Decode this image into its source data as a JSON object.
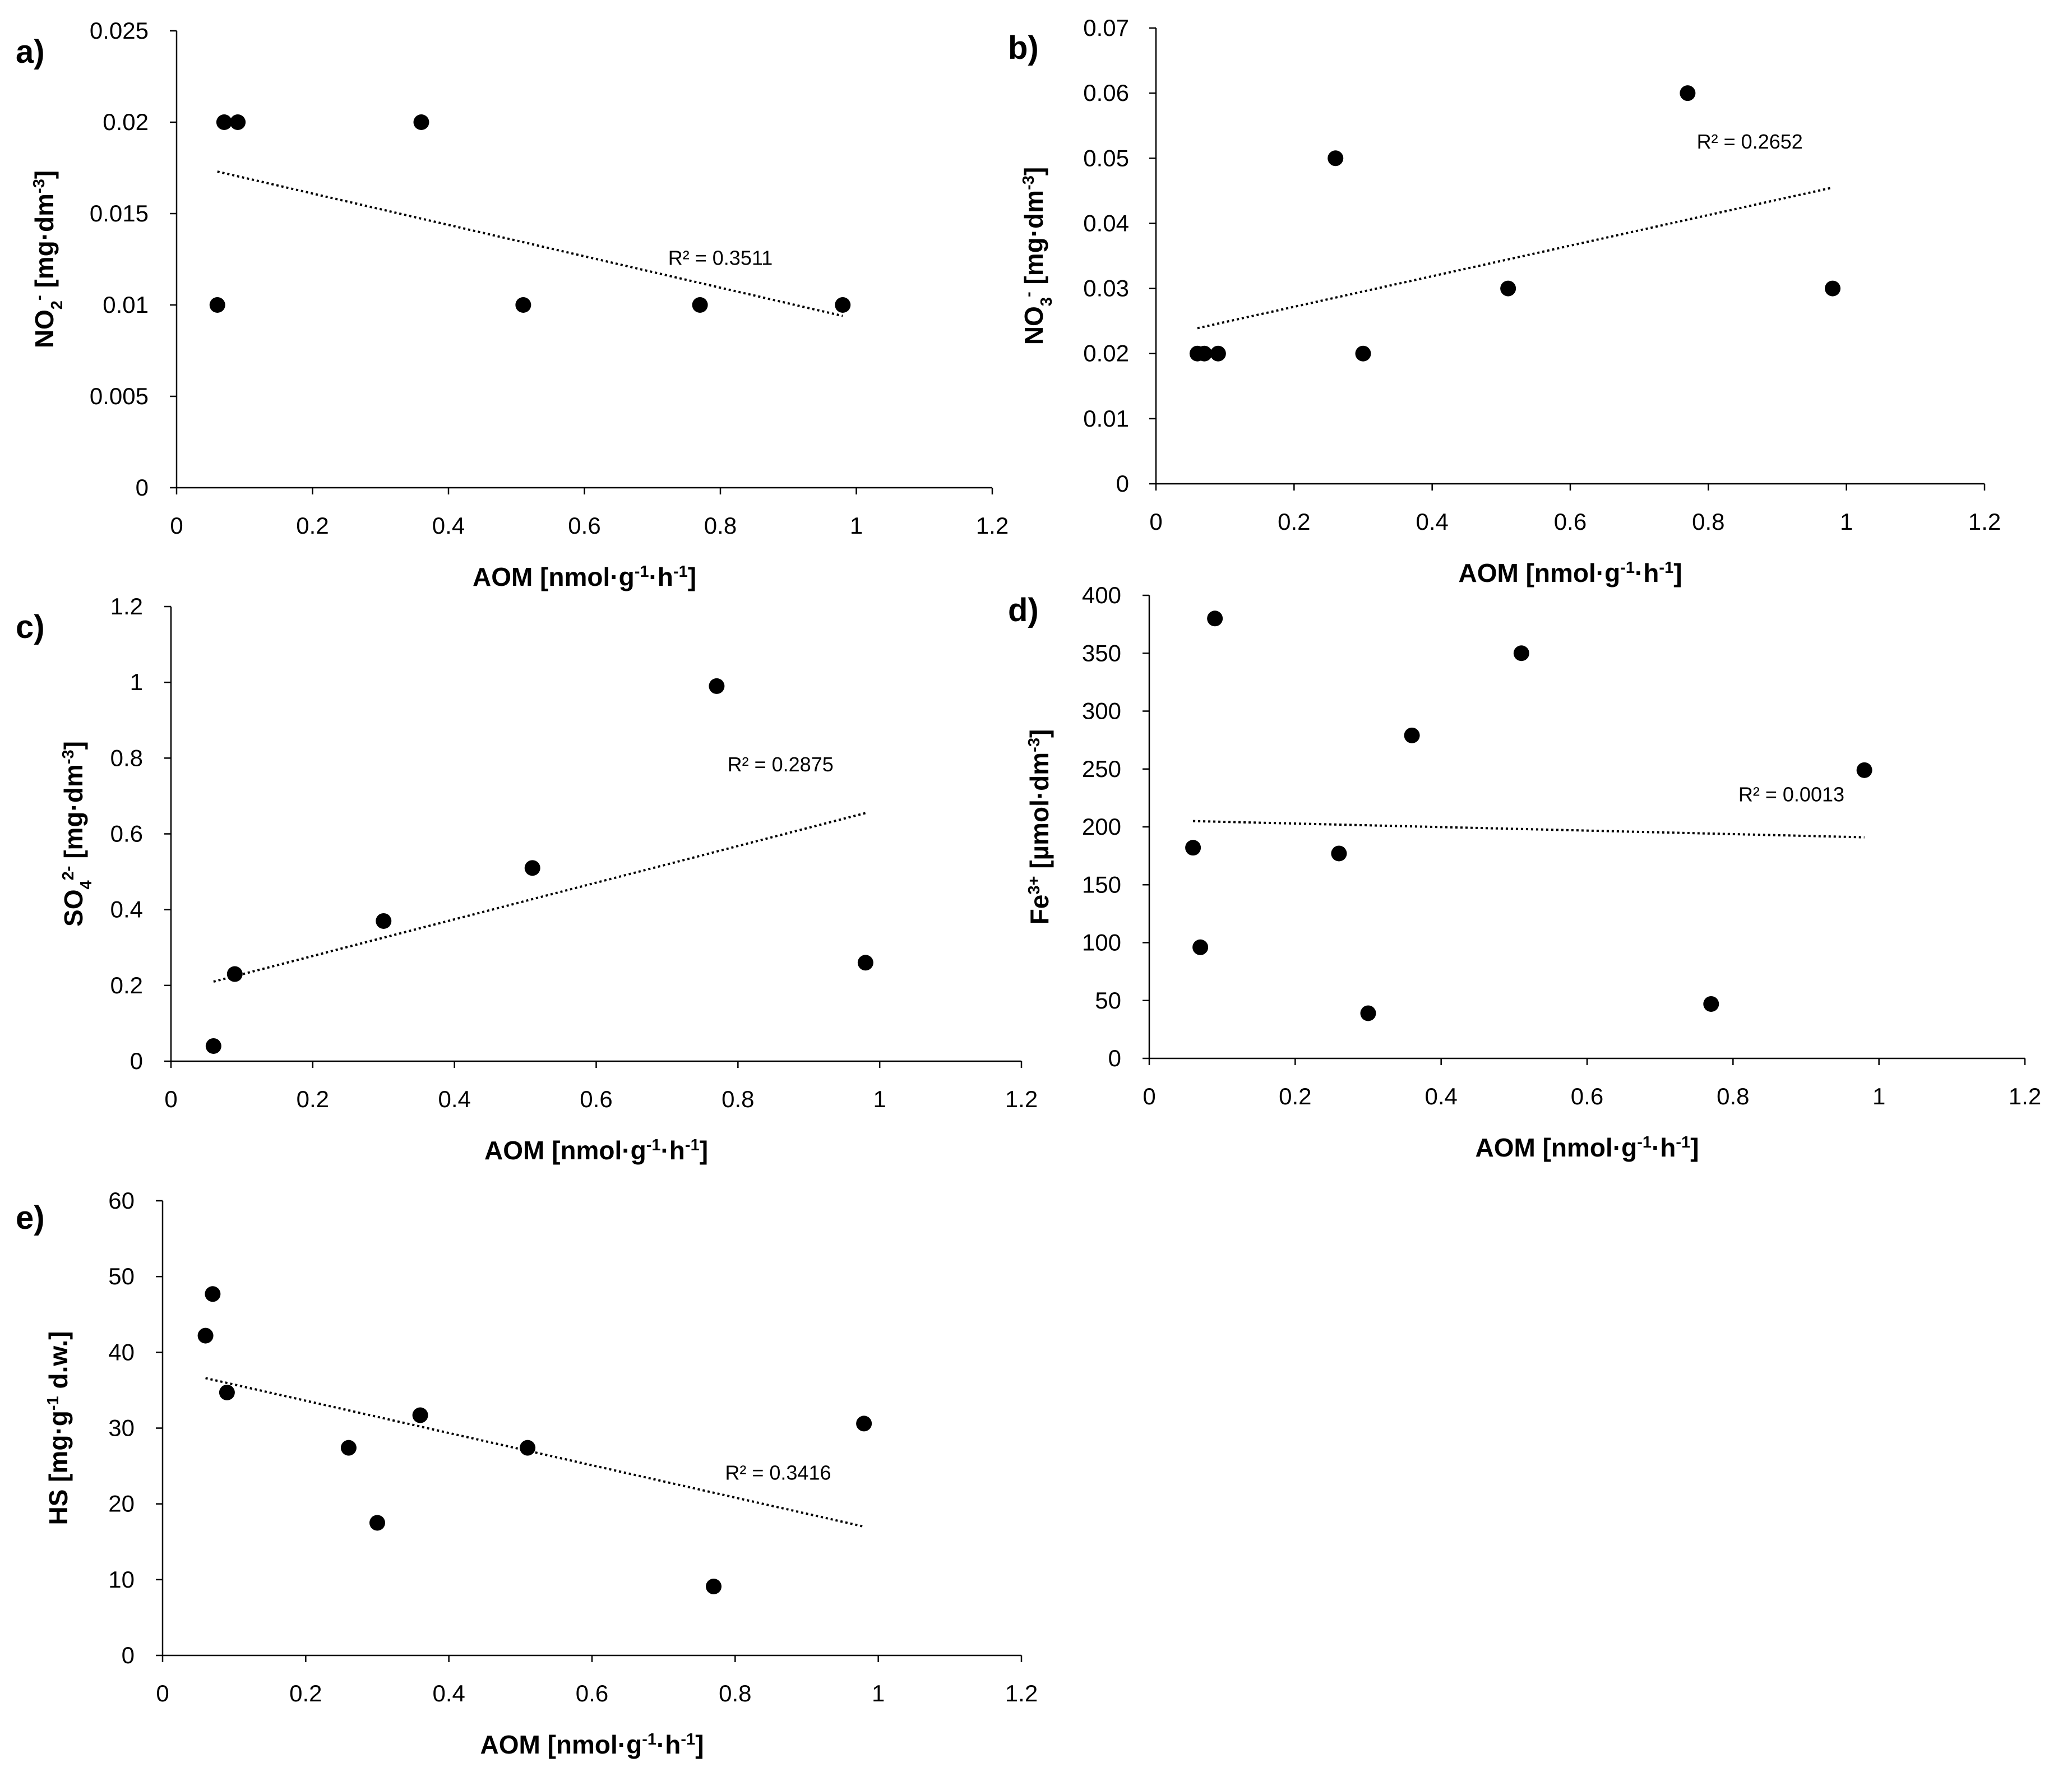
{
  "chart_data": [
    {
      "type": "scatter",
      "panel": "a)",
      "xlabel": "AOM [nmol·g⁻¹·h⁻¹]",
      "ylabel": "NO₂⁻ [mg·dm⁻³]",
      "xlim": [
        0,
        1.2
      ],
      "ylim": [
        0,
        0.025
      ],
      "xticks": [
        0,
        0.2,
        0.4,
        0.6,
        0.8,
        1,
        1.2
      ],
      "xtick_labels": [
        "0",
        "0.2",
        "0.4",
        "0.6",
        "0.8",
        "1",
        "1.2"
      ],
      "yticks": [
        0,
        0.005,
        0.01,
        0.015,
        0.02,
        0.025
      ],
      "ytick_labels": [
        "0",
        "0.005",
        "0.01",
        "0.015",
        "0.02",
        "0.025"
      ],
      "points": [
        [
          0.06,
          0.01
        ],
        [
          0.07,
          0.02
        ],
        [
          0.09,
          0.02
        ],
        [
          0.36,
          0.02
        ],
        [
          0.51,
          0.01
        ],
        [
          0.77,
          0.01
        ],
        [
          0.98,
          0.01
        ]
      ],
      "trendline": {
        "x": [
          0.06,
          0.98
        ],
        "y": [
          0.0173,
          0.0094
        ]
      },
      "r2": "R² = 0.3511",
      "r2_pos": [
        0.8,
        0.0122
      ]
    },
    {
      "type": "scatter",
      "panel": "b)",
      "xlabel": "AOM [nmol·g⁻¹·h⁻¹]",
      "ylabel": "NO₃⁻ [mg·dm⁻³]",
      "xlim": [
        0,
        1.2
      ],
      "ylim": [
        0,
        0.07
      ],
      "xticks": [
        0,
        0.2,
        0.4,
        0.6,
        0.8,
        1,
        1.2
      ],
      "xtick_labels": [
        "0",
        "0.2",
        "0.4",
        "0.6",
        "0.8",
        "1",
        "1.2"
      ],
      "yticks": [
        0,
        0.01,
        0.02,
        0.03,
        0.04,
        0.05,
        0.06,
        0.07
      ],
      "ytick_labels": [
        "0",
        "0.01",
        "0.02",
        "0.03",
        "0.04",
        "0.05",
        "0.06",
        "0.07"
      ],
      "points": [
        [
          0.06,
          0.02
        ],
        [
          0.07,
          0.02
        ],
        [
          0.09,
          0.02
        ],
        [
          0.26,
          0.05
        ],
        [
          0.3,
          0.02
        ],
        [
          0.51,
          0.03
        ],
        [
          0.77,
          0.06
        ],
        [
          0.98,
          0.03
        ]
      ],
      "trendline": {
        "x": [
          0.06,
          0.98
        ],
        "y": [
          0.0239,
          0.0455
        ]
      },
      "r2": "R² = 0.2652",
      "r2_pos": [
        0.86,
        0.0515
      ]
    },
    {
      "type": "scatter",
      "panel": "c)",
      "xlabel": "AOM [nmol·g⁻¹·h⁻¹]",
      "ylabel": "SO₄²⁻ [mg·dm⁻³]",
      "xlim": [
        0,
        1.2
      ],
      "ylim": [
        0,
        1.2
      ],
      "xticks": [
        0,
        0.2,
        0.4,
        0.6,
        0.8,
        1,
        1.2
      ],
      "xtick_labels": [
        "0",
        "0.2",
        "0.4",
        "0.6",
        "0.8",
        "1",
        "1.2"
      ],
      "yticks": [
        0,
        0.2,
        0.4,
        0.6,
        0.8,
        1,
        1.2
      ],
      "ytick_labels": [
        "0",
        "0.2",
        "0.4",
        "0.6",
        "0.8",
        "1",
        "1.2"
      ],
      "points": [
        [
          0.06,
          0.04
        ],
        [
          0.09,
          0.23
        ],
        [
          0.3,
          0.37
        ],
        [
          0.51,
          0.51
        ],
        [
          0.77,
          0.99
        ],
        [
          0.98,
          0.26
        ]
      ],
      "trendline": {
        "x": [
          0.06,
          0.98
        ],
        "y": [
          0.21,
          0.655
        ]
      },
      "r2": "R² = 0.2875",
      "r2_pos": [
        0.86,
        0.765
      ]
    },
    {
      "type": "scatter",
      "panel": "d)",
      "xlabel": "AOM [nmol·g⁻¹·h⁻¹]",
      "ylabel": "Fe³⁺ [µmol·dm⁻³]",
      "xlim": [
        0,
        1.2
      ],
      "ylim": [
        0,
        400
      ],
      "xticks": [
        0,
        0.2,
        0.4,
        0.6,
        0.8,
        1,
        1.2
      ],
      "xtick_labels": [
        "0",
        "0.2",
        "0.4",
        "0.6",
        "0.8",
        "1",
        "1.2"
      ],
      "yticks": [
        0,
        50,
        100,
        150,
        200,
        250,
        300,
        350,
        400
      ],
      "ytick_labels": [
        "0",
        "50",
        "100",
        "150",
        "200",
        "250",
        "300",
        "350",
        "400"
      ],
      "points": [
        [
          0.06,
          182
        ],
        [
          0.07,
          96
        ],
        [
          0.09,
          380
        ],
        [
          0.26,
          177
        ],
        [
          0.3,
          39
        ],
        [
          0.36,
          279
        ],
        [
          0.51,
          350
        ],
        [
          0.77,
          47
        ],
        [
          0.98,
          249
        ]
      ],
      "trendline": {
        "x": [
          0.06,
          0.98
        ],
        "y": [
          205,
          191
        ]
      },
      "r2": "R² = 0.0013",
      "r2_pos": [
        0.88,
        222
      ]
    },
    {
      "type": "scatter",
      "panel": "e)",
      "xlabel": "AOM [nmol·g⁻¹·h⁻¹]",
      "ylabel": "HS [mg·g⁻¹ d.w.]",
      "xlim": [
        0,
        1.2
      ],
      "ylim": [
        0,
        60
      ],
      "xticks": [
        0,
        0.2,
        0.4,
        0.6,
        0.8,
        1,
        1.2
      ],
      "xtick_labels": [
        "0",
        "0.2",
        "0.4",
        "0.6",
        "0.8",
        "1",
        "1.2"
      ],
      "yticks": [
        0,
        10,
        20,
        30,
        40,
        50,
        60
      ],
      "ytick_labels": [
        "0",
        "10",
        "20",
        "30",
        "40",
        "50",
        "60"
      ],
      "points": [
        [
          0.06,
          42.2
        ],
        [
          0.07,
          47.7
        ],
        [
          0.09,
          34.7
        ],
        [
          0.26,
          27.4
        ],
        [
          0.3,
          17.5
        ],
        [
          0.36,
          31.7
        ],
        [
          0.51,
          27.4
        ],
        [
          0.77,
          9.1
        ],
        [
          0.98,
          30.6
        ]
      ],
      "trendline": {
        "x": [
          0.06,
          0.98
        ],
        "y": [
          36.6,
          17.0
        ]
      },
      "r2": "R² = 0.3416",
      "r2_pos": [
        0.86,
        23.2
      ]
    }
  ]
}
